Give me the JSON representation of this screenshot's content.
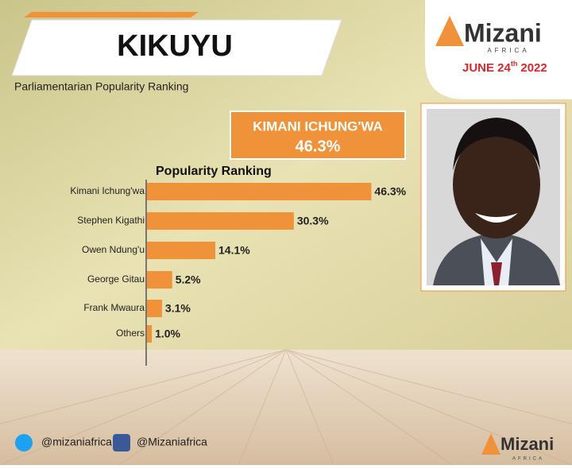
{
  "header": {
    "title": "KIKUYU",
    "subtitle": "Parliamentarian Popularity Ranking"
  },
  "logo": {
    "name": "Mizani",
    "region": "AFRICA",
    "date_day": "JUNE 24",
    "date_suffix": "th",
    "date_year": "2022"
  },
  "highlight": {
    "name": "KIMANI ICHUNG'WA",
    "value": "46.3%"
  },
  "chart_data": {
    "type": "bar",
    "orientation": "horizontal",
    "title": "Popularity Ranking",
    "categories": [
      "Kimani Ichung'wa",
      "Stephen Kigathi",
      "Owen Ndung'u",
      "George Gitau",
      "Frank Mwaura",
      "Others"
    ],
    "values": [
      46.3,
      30.3,
      14.1,
      5.2,
      3.1,
      1.0
    ],
    "value_labels": [
      "46.3%",
      "30.3%",
      "14.1%",
      "5.2%",
      "3.1%",
      "1.0%"
    ],
    "color": "#f0923a"
  },
  "footer": {
    "twitter": "@mizaniafrica",
    "facebook": "@Mizaniafrica",
    "logo_name": "Mizani",
    "logo_region": "AFRICA"
  }
}
